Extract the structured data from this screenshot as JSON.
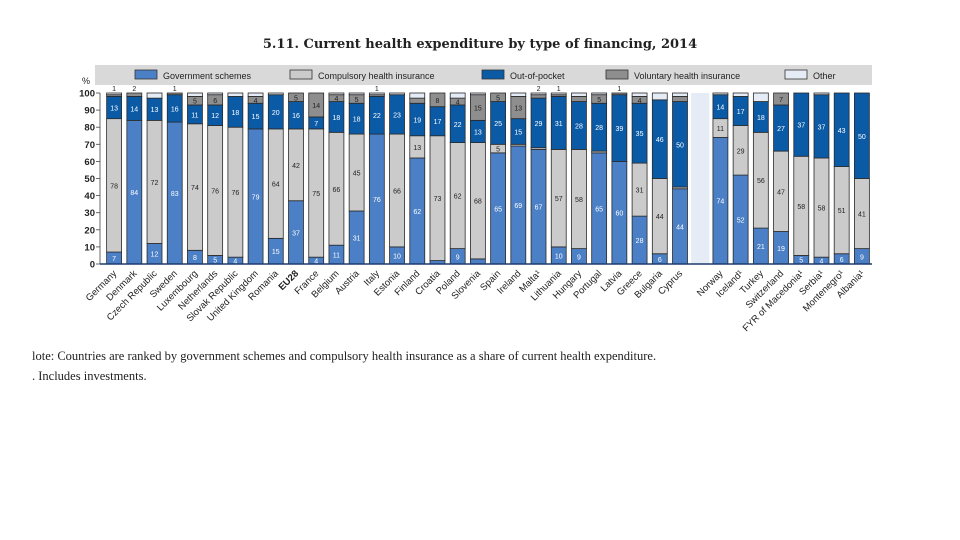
{
  "chart_data": {
    "type": "bar",
    "stacked": true,
    "title": "5.11. Current health expenditure by type of financing, 2014",
    "ylabel": "%",
    "ylim": [
      0,
      100
    ],
    "yticks": [
      0,
      10,
      20,
      30,
      40,
      50,
      60,
      70,
      80,
      90,
      100
    ],
    "legend_position": "top",
    "series_names": [
      "Government schemes",
      "Compulsory health insurance",
      "Out-of-pocket",
      "Voluntary health insurance",
      "Other"
    ],
    "colors": [
      "#4b7fc6",
      "#cbcbcb",
      "#0b5aa6",
      "#8e8e8e",
      "#e6ecf5"
    ],
    "categories": [
      "Germany",
      "Denmark",
      "Czech Republic",
      "Sweden",
      "Luxembourg",
      "Netherlands",
      "Slovak Republic",
      "United Kingdom",
      "Romania",
      "EU28",
      "France",
      "Belgium",
      "Austria",
      "Italy",
      "Estonia",
      "Finland",
      "Croatia",
      "Poland",
      "Slovenia",
      "Spain",
      "Ireland",
      "Malta¹",
      "Lithuania",
      "Hungary",
      "Portugal",
      "Latvia",
      "Greece",
      "Bulgaria",
      "Cyprus",
      "",
      "Norway",
      "Iceland¹",
      "Turkey",
      "Switzerland",
      "FYR of Macedonia¹",
      "Serbia¹",
      "Montenegro¹",
      "Albania¹"
    ],
    "series": [
      {
        "name": "Government schemes",
        "values": [
          7,
          84,
          12,
          83,
          8,
          5,
          4,
          79,
          15,
          37,
          4,
          11,
          31,
          76,
          10,
          62,
          2,
          9,
          3,
          65,
          69,
          67,
          10,
          9,
          65,
          60,
          28,
          6,
          44,
          null,
          74,
          52,
          21,
          19,
          5,
          4,
          6,
          9
        ]
      },
      {
        "name": "Compulsory health insurance",
        "values": [
          78,
          0,
          72,
          0,
          74,
          76,
          76,
          0,
          64,
          42,
          75,
          66,
          45,
          0,
          66,
          13,
          73,
          62,
          68,
          5,
          1,
          1,
          57,
          58,
          1,
          0,
          31,
          44,
          1,
          null,
          11,
          29,
          56,
          47,
          58,
          58,
          51,
          41
        ]
      },
      {
        "name": "Out-of-pocket",
        "values": [
          13,
          14,
          13,
          16,
          11,
          12,
          18,
          15,
          20,
          16,
          7,
          18,
          18,
          22,
          23,
          19,
          17,
          22,
          13,
          25,
          15,
          29,
          31,
          28,
          28,
          39,
          35,
          46,
          50,
          null,
          14,
          17,
          18,
          27,
          37,
          37,
          43,
          50
        ]
      },
      {
        "name": "Voluntary health insurance",
        "values": [
          1,
          2,
          0,
          1,
          5,
          6,
          0,
          4,
          0,
          5,
          14,
          4,
          5,
          1,
          0,
          3,
          8,
          4,
          15,
          5,
          13,
          2,
          1,
          3,
          5,
          1,
          4,
          0,
          3,
          null,
          0,
          0,
          0,
          7,
          0,
          0,
          0,
          0
        ]
      },
      {
        "name": "Other",
        "values": [
          1,
          0,
          3,
          0,
          2,
          1,
          2,
          2,
          1,
          0,
          0,
          1,
          1,
          1,
          1,
          3,
          0,
          3,
          1,
          0,
          2,
          1,
          1,
          2,
          1,
          0,
          2,
          4,
          2,
          null,
          1,
          2,
          5,
          0,
          0,
          1,
          0,
          0
        ]
      }
    ],
    "labels_above_bars": [
      "1",
      "2",
      "",
      "1",
      "",
      "",
      "",
      "",
      "",
      "",
      "",
      "",
      "",
      "1",
      "",
      "",
      "",
      "",
      "",
      "",
      "",
      "2",
      "1",
      "",
      "",
      "1",
      "",
      "",
      "",
      "",
      "",
      "",
      "",
      "",
      "",
      "",
      "",
      ""
    ]
  },
  "notes": {
    "note": "lote:  Countries are ranked by government schemes and compulsory health insurance as a share of current health expenditure.",
    "footnote": ".   Includes investments."
  }
}
